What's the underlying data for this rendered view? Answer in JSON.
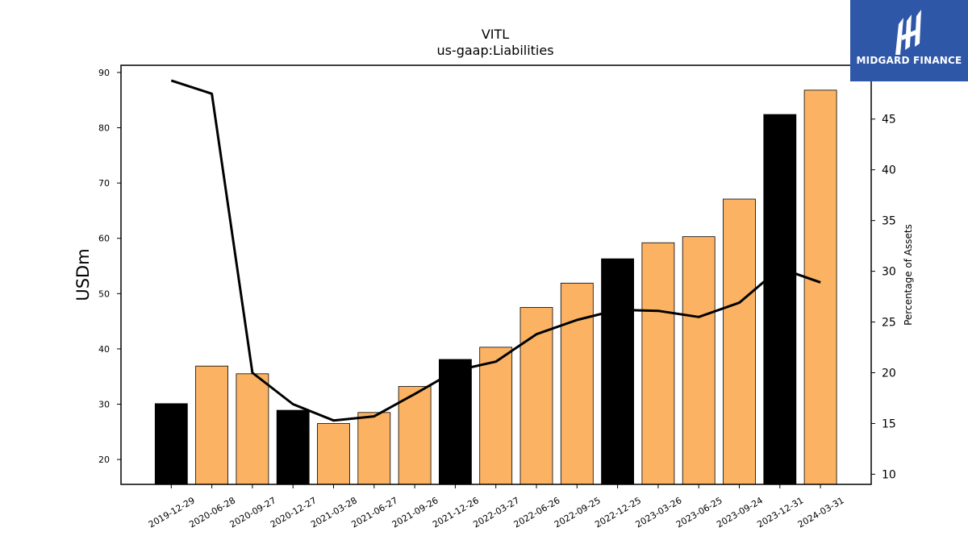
{
  "brand": {
    "name": "MIDGARD FINANCE",
    "bg_color": "#2f57a8",
    "text_color": "#ffffff",
    "icon": "midgard-logo-icon"
  },
  "chart_data": {
    "type": "bar",
    "title": "VITL",
    "subtitle": "us-gaap:Liabilities",
    "ylabel": "USDm",
    "y2label": "Percentage of Assets",
    "ylim": [
      15.5,
      91.3
    ],
    "y2lim": [
      9.0,
      50.3
    ],
    "yticks": [
      20,
      30,
      40,
      50,
      60,
      70,
      80,
      90
    ],
    "y2ticks": [
      10,
      15,
      20,
      25,
      30,
      35,
      40,
      45
    ],
    "grid": false,
    "categories": [
      "2019-12-29",
      "2020-06-28",
      "2020-09-27",
      "2020-12-27",
      "2021-03-28",
      "2021-06-27",
      "2021-09-26",
      "2021-12-26",
      "2022-03-27",
      "2022-06-26",
      "2022-09-25",
      "2022-12-25",
      "2023-03-26",
      "2023-06-25",
      "2023-09-24",
      "2023-12-31",
      "2024-03-31"
    ],
    "series": [
      {
        "kind": "bar",
        "axis": "left",
        "values": [
          30.1,
          36.9,
          35.5,
          28.9,
          26.5,
          28.5,
          33.2,
          38.1,
          40.3,
          47.5,
          51.9,
          56.3,
          59.2,
          60.3,
          67.1,
          82.4,
          86.8
        ],
        "colors": [
          "#000000",
          "#fbb363",
          "#fbb363",
          "#000000",
          "#fbb363",
          "#fbb363",
          "#fbb363",
          "#000000",
          "#fbb363",
          "#fbb363",
          "#fbb363",
          "#000000",
          "#fbb363",
          "#fbb363",
          "#fbb363",
          "#000000",
          "#fbb363"
        ]
      },
      {
        "kind": "line",
        "axis": "right",
        "color": "#000000",
        "values": [
          48.8,
          47.5,
          20.0,
          16.9,
          15.3,
          15.7,
          17.9,
          20.2,
          21.1,
          23.8,
          25.2,
          26.2,
          26.1,
          25.5,
          26.9,
          30.3,
          28.9
        ]
      }
    ]
  }
}
